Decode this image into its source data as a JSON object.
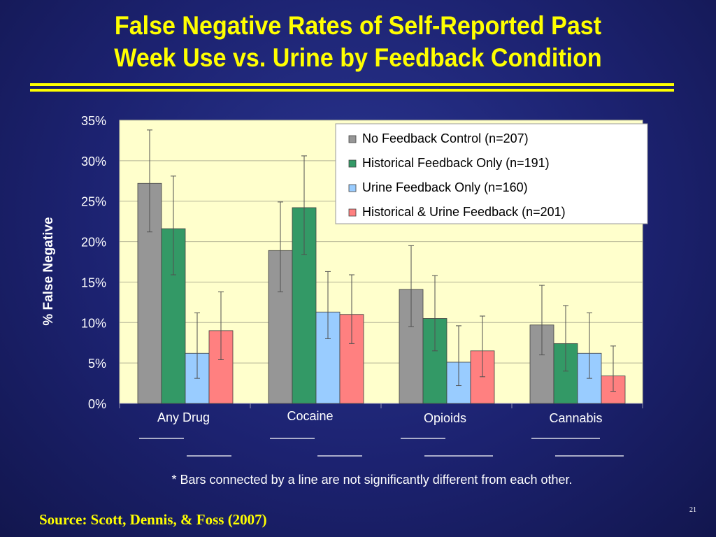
{
  "slide": {
    "title_line1": "False Negative Rates of Self-Reported Past",
    "title_line2": "Week Use vs. Urine by Feedback Condition",
    "footnote": "* Bars connected by a line are not significantly different from each other.",
    "source": "Source: Scott, Dennis, & Foss (2007)",
    "page_number": "21"
  },
  "chart_data": {
    "type": "bar",
    "ylabel": "% False Negative",
    "ylim": [
      0,
      35
    ],
    "yticks": [
      "0%",
      "5%",
      "10%",
      "15%",
      "20%",
      "25%",
      "30%",
      "35%"
    ],
    "categories": [
      "Any Drug",
      "Cocaine",
      "Opioids",
      "Cannabis"
    ],
    "series": [
      {
        "name": "No Feedback Control (n=207)",
        "color": "#969696",
        "values": [
          27.2,
          18.9,
          14.1,
          9.7
        ],
        "ci_low": [
          21.2,
          13.8,
          9.5,
          6.0
        ],
        "ci_high": [
          33.8,
          24.9,
          19.5,
          14.6
        ]
      },
      {
        "name": "Historical Feedback Only (n=191)",
        "color": "#339966",
        "values": [
          21.6,
          24.2,
          10.5,
          7.4
        ],
        "ci_low": [
          15.9,
          18.4,
          6.5,
          4.0
        ],
        "ci_high": [
          28.1,
          30.6,
          15.8,
          12.1
        ]
      },
      {
        "name": "Urine Feedback Only (n=160)",
        "color": "#99ccff",
        "values": [
          6.2,
          11.3,
          5.1,
          6.2
        ],
        "ci_low": [
          3.1,
          8.0,
          2.2,
          3.1
        ],
        "ci_high": [
          11.2,
          16.3,
          9.6,
          11.2
        ]
      },
      {
        "name": "Historical & Urine Feedback (n=201)",
        "color": "#ff8080",
        "values": [
          9.0,
          11.0,
          6.5,
          3.4
        ],
        "ci_low": [
          5.4,
          7.4,
          3.3,
          1.5
        ],
        "ci_high": [
          13.8,
          15.9,
          10.8,
          7.1
        ]
      }
    ],
    "significance_lines": [
      {
        "category": "Any Drug",
        "row": 1,
        "from_series": 0,
        "to_series": 1
      },
      {
        "category": "Any Drug",
        "row": 2,
        "from_series": 2,
        "to_series": 3
      },
      {
        "category": "Cocaine",
        "row": 1,
        "from_series": 0,
        "to_series": 1
      },
      {
        "category": "Cocaine",
        "row": 2,
        "from_series": 2,
        "to_series": 3
      },
      {
        "category": "Opioids",
        "row": 1,
        "from_series": 0,
        "to_series": 1
      },
      {
        "category": "Opioids",
        "row": 2,
        "from_series": 1,
        "to_series": 3
      },
      {
        "category": "Cannabis",
        "row": 1,
        "from_series": 0,
        "to_series": 2
      },
      {
        "category": "Cannabis",
        "row": 2,
        "from_series": 1,
        "to_series": 3
      }
    ],
    "grid": true,
    "legend_position": "top-right",
    "colors": {
      "plot_background": "#ffffcc",
      "text": "#ffffff",
      "title": "#ffff00"
    }
  }
}
